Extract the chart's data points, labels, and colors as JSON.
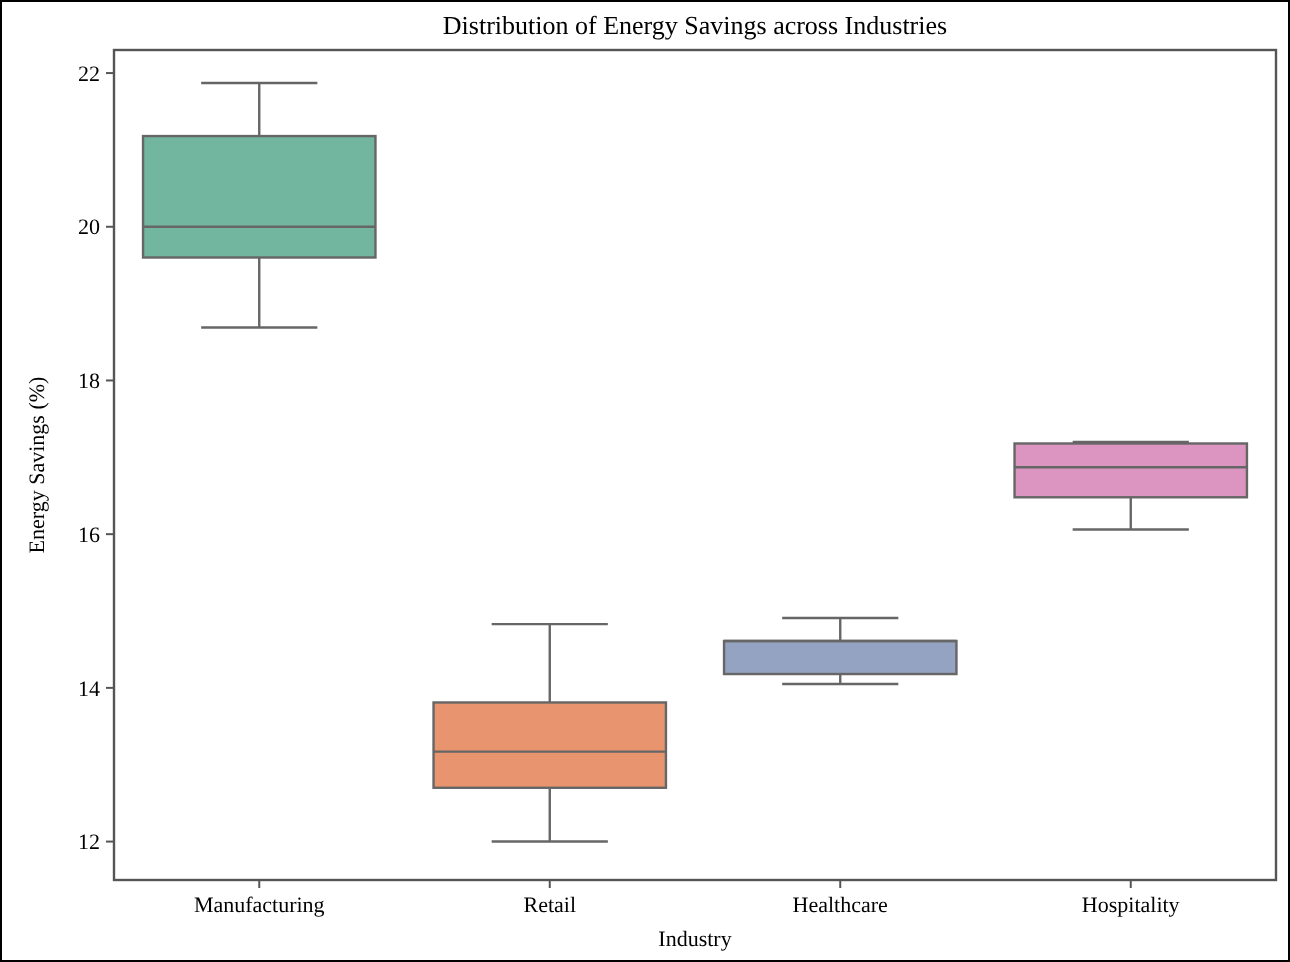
{
  "chart_data": {
    "type": "box",
    "title": "Distribution of Energy Savings across Industries",
    "xlabel": "Industry",
    "ylabel": "Energy Savings (%)",
    "categories": [
      "Manufacturing",
      "Retail",
      "Healthcare",
      "Hospitality"
    ],
    "colors": [
      "#73b6a0",
      "#e8956f",
      "#95a3c3",
      "#dc94c0"
    ],
    "boxes": [
      {
        "low": 18.69,
        "q1": 19.6,
        "median": 20.0,
        "q3": 21.18,
        "high": 21.87
      },
      {
        "low": 12.0,
        "q1": 12.7,
        "median": 13.17,
        "q3": 13.81,
        "high": 14.83
      },
      {
        "low": 14.05,
        "q1": 14.18,
        "median": 14.61,
        "q3": 14.61,
        "high": 14.91
      },
      {
        "low": 16.06,
        "q1": 16.48,
        "median": 16.87,
        "q3": 17.18,
        "high": 17.2
      }
    ],
    "ylim": [
      11.5,
      22.3
    ],
    "yticks": [
      12,
      14,
      16,
      18,
      20,
      22
    ],
    "grid": false
  }
}
